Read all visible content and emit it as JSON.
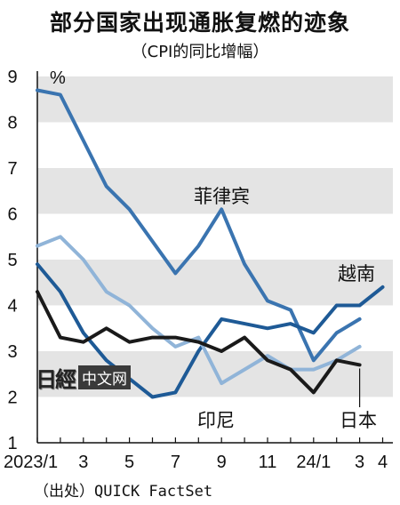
{
  "header": {
    "title": "部分国家出现通胀复燃的迹象",
    "subtitle": "（CPI的同比增幅）"
  },
  "source": "（出处）QUICK FactSet",
  "watermark": {
    "logo": "日經",
    "box": "中文网"
  },
  "colors": {
    "band": "#e4e4e4",
    "philippines": "#3a74b0",
    "vietnam": "#1e5a96",
    "indonesia": "#90b4d8",
    "japan": "#1a1a1a"
  },
  "chart_data": {
    "type": "line",
    "title": "部分国家出现通胀复燃的迹象",
    "subtitle": "（CPI的同比增幅）",
    "yunit": "%",
    "ylim": [
      1,
      9
    ],
    "yticks": [
      "1",
      "2",
      "3",
      "4",
      "5",
      "6",
      "7",
      "8",
      "9"
    ],
    "x": [
      "2023/1",
      "2023/2",
      "2023/3",
      "2023/4",
      "2023/5",
      "2023/6",
      "2023/7",
      "2023/8",
      "2023/9",
      "2023/10",
      "2023/11",
      "2023/12",
      "2024/1",
      "2024/2",
      "2024/3",
      "2024/4"
    ],
    "xtick_labels": [
      {
        "index": 0,
        "label": "2023/1"
      },
      {
        "index": 2,
        "label": "3"
      },
      {
        "index": 4,
        "label": "5"
      },
      {
        "index": 6,
        "label": "7"
      },
      {
        "index": 8,
        "label": "9"
      },
      {
        "index": 10,
        "label": "11"
      },
      {
        "index": 12,
        "label": "24/1"
      },
      {
        "index": 14,
        "label": "3"
      },
      {
        "index": 15,
        "label": "4"
      }
    ],
    "grid": "alternating horizontal bands",
    "series": [
      {
        "name": "菲律宾",
        "color": "#3a74b0",
        "values": [
          8.7,
          8.6,
          7.6,
          6.6,
          6.1,
          5.4,
          4.7,
          5.3,
          6.1,
          4.9,
          4.1,
          3.9,
          2.8,
          3.4,
          3.7,
          null
        ]
      },
      {
        "name": "越南",
        "color": "#1e5a96",
        "values": [
          4.9,
          4.3,
          3.4,
          2.8,
          2.4,
          2.0,
          2.1,
          3.0,
          3.7,
          3.6,
          3.5,
          3.6,
          3.4,
          4.0,
          4.0,
          4.4
        ]
      },
      {
        "name": "印尼",
        "color": "#90b4d8",
        "values": [
          5.3,
          5.5,
          5.0,
          4.3,
          4.0,
          3.5,
          3.1,
          3.3,
          2.3,
          2.6,
          2.9,
          2.6,
          2.6,
          2.8,
          3.1,
          null
        ]
      },
      {
        "name": "日本",
        "color": "#1a1a1a",
        "values": [
          4.3,
          3.3,
          3.2,
          3.5,
          3.2,
          3.3,
          3.3,
          3.2,
          3.0,
          3.3,
          2.8,
          2.6,
          2.1,
          2.8,
          2.7,
          null
        ]
      }
    ],
    "annotations": [
      {
        "text": "菲律宾",
        "series": "菲律宾"
      },
      {
        "text": "越南",
        "series": "越南"
      },
      {
        "text": "印尼",
        "series": "印尼"
      },
      {
        "text": "日本",
        "series": "日本"
      }
    ]
  }
}
